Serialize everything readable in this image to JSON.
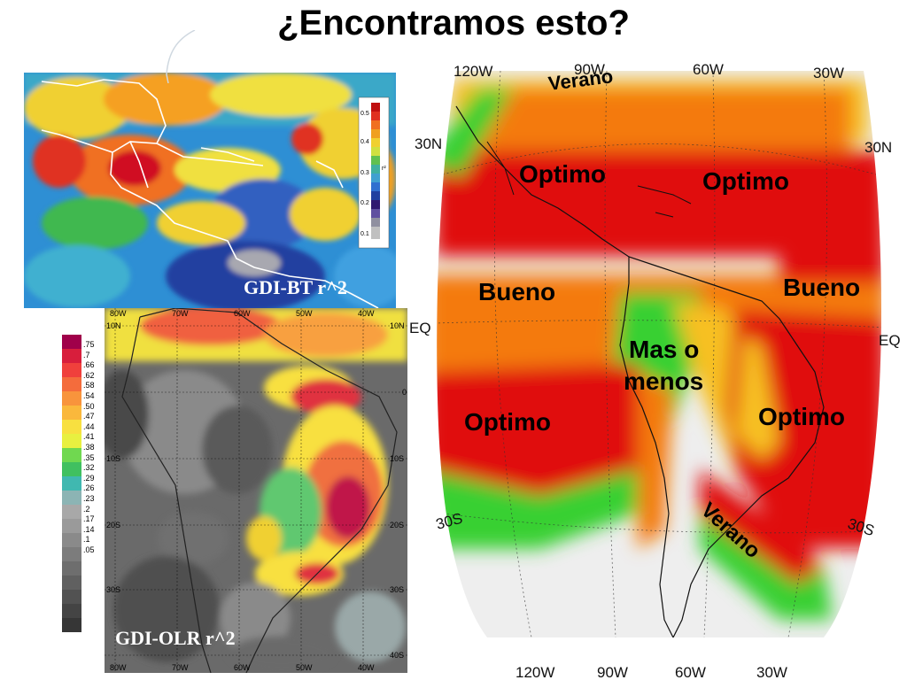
{
  "title": "¿Encontramos esto?",
  "panel_top_left": {
    "caption": "GDI-BT r^2",
    "colorbar_ticks": [
      "0.5",
      "0.4",
      "0.3",
      "0.2",
      "0.1"
    ],
    "colorbar_label": "r²"
  },
  "panel_bottom_left": {
    "caption": "GDI-OLR r^2",
    "top_lon": [
      "80W",
      "70W",
      "60W",
      "50W",
      "40W"
    ],
    "bottom_lon": [
      "80W",
      "70W",
      "60W",
      "50W",
      "40W"
    ],
    "left_lat": [
      "10N",
      "10S",
      "20S",
      "30S"
    ],
    "right_lat": [
      "10N",
      "0",
      "10S",
      "20S",
      "30S",
      "40S"
    ],
    "colorbar_ticks": [
      ".75",
      ".7",
      ".66",
      ".62",
      ".58",
      ".54",
      ".50",
      ".47",
      ".44",
      ".41",
      ".38",
      ".35",
      ".32",
      ".29",
      ".26",
      ".23",
      ".2",
      ".17",
      ".14",
      ".1",
      ".05"
    ],
    "colorbar_colors": [
      "#a0004a",
      "#d81e3c",
      "#f0403c",
      "#f46c3c",
      "#f8943c",
      "#fab83c",
      "#f8e040",
      "#e8f040",
      "#70d850",
      "#40c060",
      "#40b8b0",
      "#8cb4b4",
      "#a8a8a8",
      "#9a9a9a",
      "#8a8a8a",
      "#7c7c7c",
      "#6e6e6e",
      "#606060",
      "#525252",
      "#444444",
      "#363636"
    ]
  },
  "panel_right": {
    "top_lon": [
      "120W",
      "90W",
      "60W",
      "30W"
    ],
    "bottom_lon": [
      "120W",
      "90W",
      "60W",
      "30W"
    ],
    "lat_left": [
      "30N",
      "EQ",
      "30S"
    ],
    "lat_right": [
      "30N",
      "EQ",
      "30S"
    ],
    "regions": {
      "verano_top": "Verano",
      "optimo_nw": "Optimo",
      "optimo_ne": "Optimo",
      "bueno_w": "Bueno",
      "bueno_e": "Bueno",
      "mas_o_menos_1": "Mas o",
      "mas_o_menos_2": "menos",
      "optimo_sw": "Optimo",
      "optimo_se": "Optimo",
      "verano_bottom": "Verano"
    },
    "colors": {
      "optimo": "#e01010",
      "bueno": "#f47a10",
      "mas_o_menos": "#f7c020",
      "verano": "#38d030",
      "background": "#eeeeee"
    }
  }
}
